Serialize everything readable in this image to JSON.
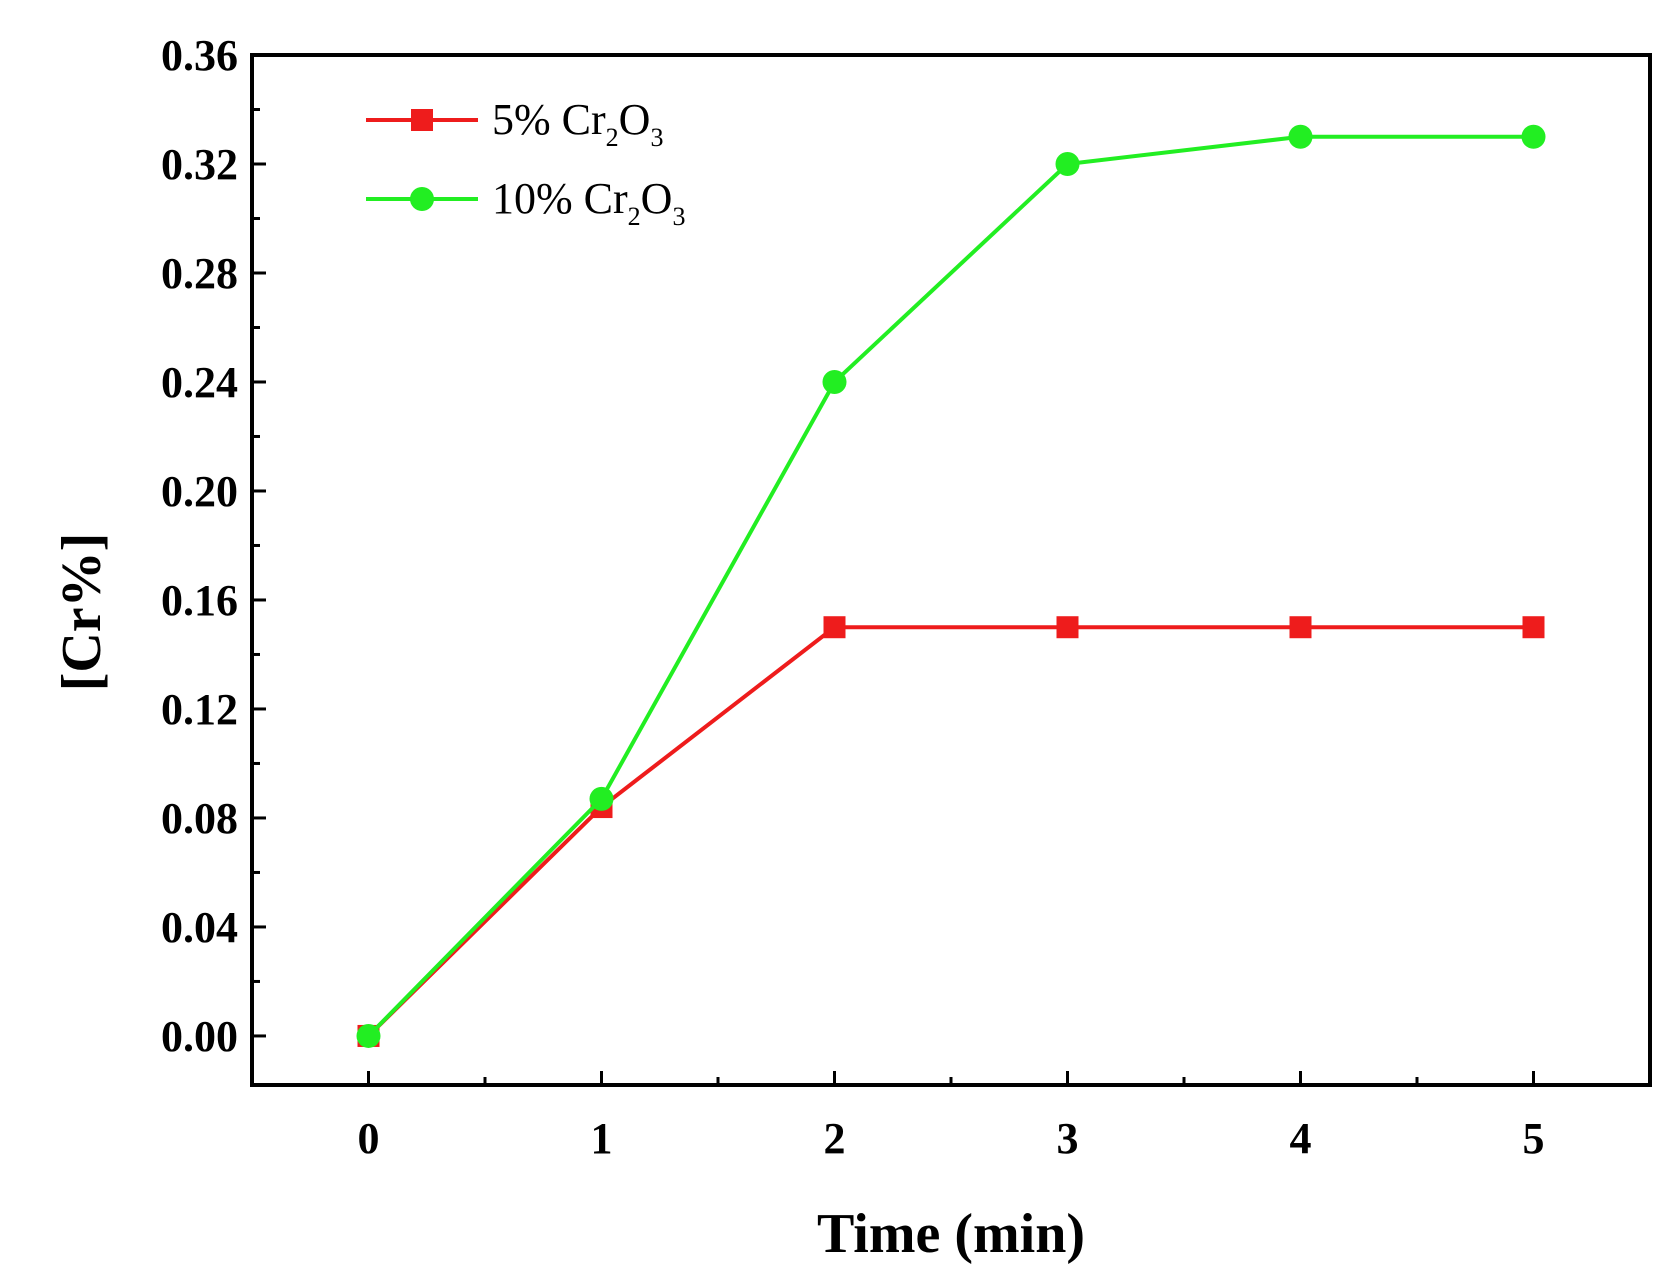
{
  "chart_data": {
    "type": "line",
    "title": "",
    "xlabel": "Time (min)",
    "ylabel": "[Cr%]",
    "xlim": [
      -0.5,
      5.5
    ],
    "ylim": [
      -0.018,
      0.36
    ],
    "xticks": [
      0,
      1,
      2,
      3,
      4,
      5
    ],
    "xtick_labels": [
      "0",
      "1",
      "2",
      "3",
      "4",
      "5"
    ],
    "yticks": [
      0.0,
      0.04,
      0.08,
      0.12,
      0.16,
      0.2,
      0.24,
      0.28,
      0.32,
      0.36
    ],
    "ytick_labels": [
      "0.00",
      "0.04",
      "0.08",
      "0.12",
      "0.16",
      "0.20",
      "0.24",
      "0.28",
      "0.32",
      "0.36"
    ],
    "grid": false,
    "legend_position": "top-left",
    "x": [
      0,
      1,
      2,
      3,
      4,
      5
    ],
    "series": [
      {
        "name": "5% Cr2O3",
        "label_main": "5% Cr",
        "label_sub1": "2",
        "label_mid": "O",
        "label_sub2": "3",
        "color": "#ee1c1c",
        "marker": "square",
        "values": [
          0.0,
          0.084,
          0.15,
          0.15,
          0.15,
          0.15
        ]
      },
      {
        "name": "10% Cr2O3",
        "label_main": "10% Cr",
        "label_sub1": "2",
        "label_mid": "O",
        "label_sub2": "3",
        "color": "#22ee22",
        "marker": "circle",
        "values": [
          0.0,
          0.087,
          0.24,
          0.32,
          0.33,
          0.33
        ]
      }
    ]
  }
}
